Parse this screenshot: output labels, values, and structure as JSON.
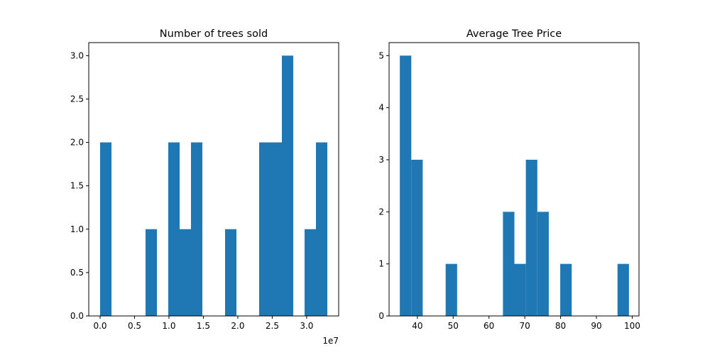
{
  "chart_data": [
    {
      "type": "bar",
      "subtype": "histogram",
      "title": "Number of trees sold",
      "xlabel": "",
      "ylabel": "",
      "x_offset_text": "1e7",
      "xlim": [
        -0.165,
        3.465
      ],
      "ylim": [
        0,
        3.15
      ],
      "xticks": [
        0.0,
        0.5,
        1.0,
        1.5,
        2.0,
        2.5,
        3.0
      ],
      "xtick_labels": [
        "0.0",
        "0.5",
        "1.0",
        "1.5",
        "2.0",
        "2.5",
        "3.0"
      ],
      "yticks": [
        0.0,
        0.5,
        1.0,
        1.5,
        2.0,
        2.5,
        3.0
      ],
      "ytick_labels": [
        "0.0",
        "0.5",
        "1.0",
        "1.5",
        "2.0",
        "2.5",
        "3.0"
      ],
      "bin_start": 0.0,
      "bin_width": 0.165,
      "counts": [
        2,
        0,
        0,
        0,
        1,
        0,
        2,
        1,
        2,
        0,
        0,
        1,
        0,
        0,
        2,
        2,
        3,
        0,
        1,
        2
      ],
      "color": "#1f77b4",
      "grid": false
    },
    {
      "type": "bar",
      "subtype": "histogram",
      "title": "Average Tree Price",
      "xlabel": "",
      "ylabel": "",
      "xlim": [
        32.1,
        101.9
      ],
      "ylim": [
        0,
        5.25
      ],
      "xticks": [
        40,
        50,
        60,
        70,
        80,
        90,
        100
      ],
      "xtick_labels": [
        "40",
        "50",
        "60",
        "70",
        "80",
        "90",
        "100"
      ],
      "yticks": [
        0,
        1,
        2,
        3,
        4,
        5
      ],
      "ytick_labels": [
        "0",
        "1",
        "2",
        "3",
        "4",
        "5"
      ],
      "bin_start": 35.1,
      "bin_width": 3.2,
      "counts": [
        5,
        3,
        0,
        0,
        1,
        0,
        0,
        0,
        0,
        2,
        1,
        3,
        2,
        0,
        1,
        0,
        0,
        0,
        0,
        1
      ],
      "color": "#1f77b4",
      "grid": false
    }
  ]
}
